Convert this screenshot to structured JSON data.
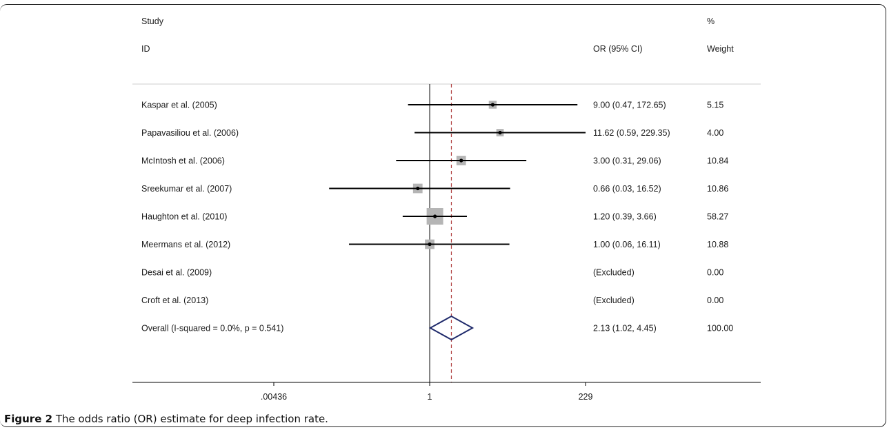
{
  "caption": {
    "label": "Figure 2",
    "text": "The odds ratio (OR) estimate for deep infection rate."
  },
  "chart_data": {
    "type": "forest",
    "header": {
      "study_line1": "Study",
      "study_line2": "ID",
      "or_label": "OR (95% CI)",
      "weight_line1": "%",
      "weight_line2": "Weight"
    },
    "x_scale": "log",
    "xlim": [
      0.00436,
      229
    ],
    "x_ticks": [
      {
        "value": 0.00436,
        "label": ".00436"
      },
      {
        "value": 1,
        "label": "1"
      },
      {
        "value": 229,
        "label": "229"
      }
    ],
    "null_line": 1,
    "overall_line": 2.13,
    "studies": [
      {
        "name": "Kaspar et al. (2005)",
        "or": 9.0,
        "lo": 0.47,
        "hi": 172.65,
        "ci_text": "9.00 (0.47, 172.65)",
        "weight": 5.15,
        "weight_text": "5.15"
      },
      {
        "name": "Papavasiliou et al. (2006)",
        "or": 11.62,
        "lo": 0.59,
        "hi": 229.35,
        "ci_text": "11.62 (0.59, 229.35)",
        "weight": 4.0,
        "weight_text": "4.00"
      },
      {
        "name": "McIntosh et al. (2006)",
        "or": 3.0,
        "lo": 0.31,
        "hi": 29.06,
        "ci_text": "3.00 (0.31, 29.06)",
        "weight": 10.84,
        "weight_text": "10.84"
      },
      {
        "name": "Sreekumar et al. (2007)",
        "or": 0.66,
        "lo": 0.03,
        "hi": 16.52,
        "ci_text": "0.66 (0.03, 16.52)",
        "weight": 10.86,
        "weight_text": "10.86"
      },
      {
        "name": "Haughton et al. (2010)",
        "or": 1.2,
        "lo": 0.39,
        "hi": 3.66,
        "ci_text": "1.20 (0.39, 3.66)",
        "weight": 58.27,
        "weight_text": "58.27"
      },
      {
        "name": "Meermans et al. (2012)",
        "or": 1.0,
        "lo": 0.06,
        "hi": 16.11,
        "ci_text": "1.00 (0.06, 16.11)",
        "weight": 10.88,
        "weight_text": "10.88"
      },
      {
        "name": "Desai et al. (2009)",
        "or": null,
        "lo": null,
        "hi": null,
        "ci_text": "(Excluded)",
        "weight": 0.0,
        "weight_text": "0.00"
      },
      {
        "name": "Croft et al. (2013)",
        "or": null,
        "lo": null,
        "hi": null,
        "ci_text": "(Excluded)",
        "weight": 0.0,
        "weight_text": "0.00"
      }
    ],
    "overall": {
      "name": "Overall  (I-squared = 0.0%, p = 0.541)",
      "or": 2.13,
      "lo": 1.02,
      "hi": 4.45,
      "ci_text": "2.13 (1.02, 4.45)",
      "weight_text": "100.00"
    },
    "colors": {
      "ci_line": "#000000",
      "weight_box": "#b5b5b5",
      "diamond": "#1f2a6b",
      "overall_line": "#b04040"
    }
  }
}
